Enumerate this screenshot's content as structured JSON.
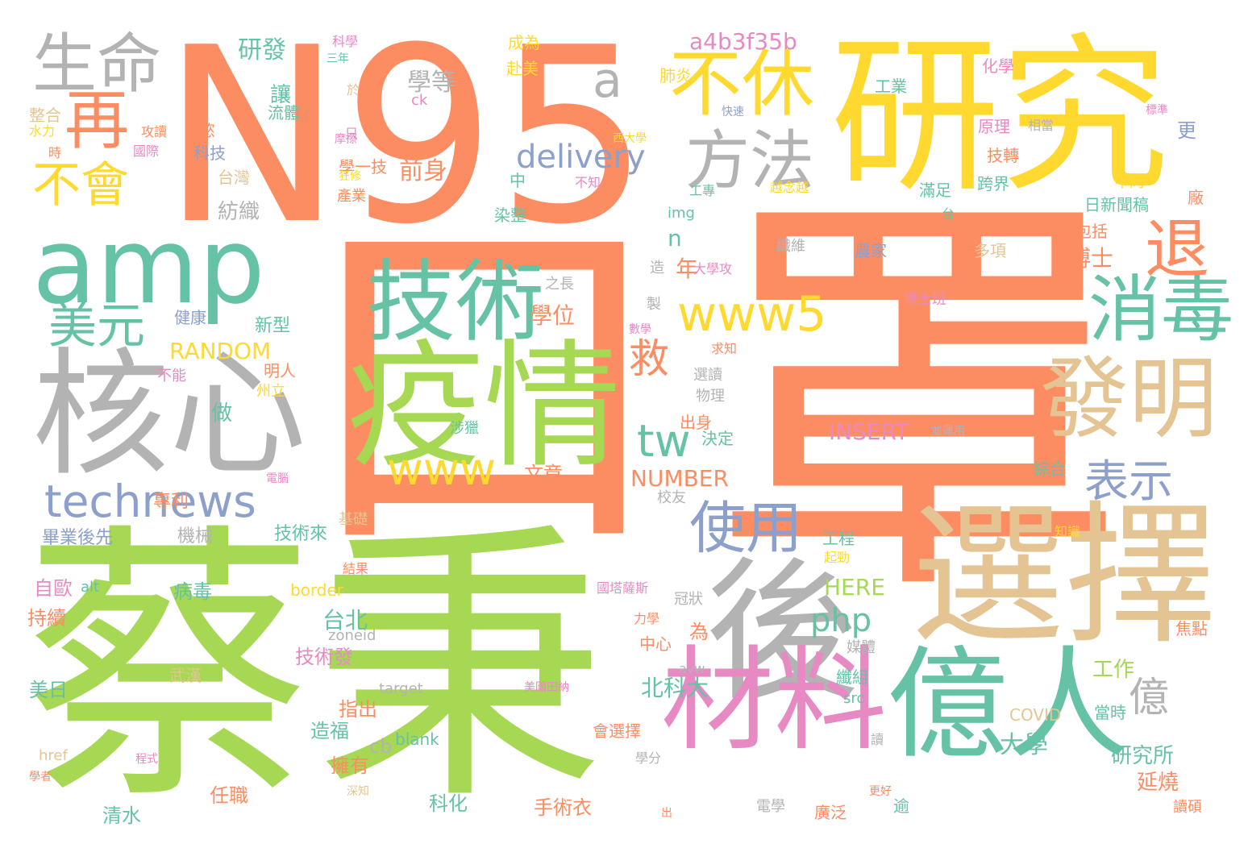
{
  "palette": {
    "orange": "#fc8d62",
    "yellow": "#ffd92f",
    "green": "#a6d854",
    "teal": "#66c2a5",
    "gray": "#b3b3b3",
    "blue": "#8da0cb",
    "pink": "#e78ac3",
    "tan": "#e5c494"
  },
  "words": [
    {
      "text": "罩",
      "color": "orange"
    },
    {
      "text": "N95",
      "color": "orange"
    },
    {
      "text": "口",
      "color": "orange"
    },
    {
      "text": "研究",
      "color": "yellow"
    },
    {
      "text": "蔡秉",
      "color": "green"
    },
    {
      "text": "amp",
      "color": "teal"
    },
    {
      "text": "核心",
      "color": "gray"
    },
    {
      "text": "選擇",
      "color": "tan"
    },
    {
      "text": "疫情",
      "color": "green"
    },
    {
      "text": "技術",
      "color": "teal"
    },
    {
      "text": "後",
      "color": "gray"
    },
    {
      "text": "億人",
      "color": "teal"
    },
    {
      "text": "材料",
      "color": "pink"
    },
    {
      "text": "發明",
      "color": "tan"
    },
    {
      "text": "消毒",
      "color": "teal"
    },
    {
      "text": "退",
      "color": "orange"
    },
    {
      "text": "不休",
      "color": "yellow"
    },
    {
      "text": "方法",
      "color": "gray"
    },
    {
      "text": "生命",
      "color": "gray"
    },
    {
      "text": "再",
      "color": "orange"
    },
    {
      "text": "不會",
      "color": "yellow"
    },
    {
      "text": "美元",
      "color": "teal"
    },
    {
      "text": "technews",
      "color": "blue"
    },
    {
      "text": "使用",
      "color": "blue"
    },
    {
      "text": "表示",
      "color": "blue"
    },
    {
      "text": "www5",
      "color": "yellow"
    },
    {
      "text": "www",
      "color": "yellow"
    },
    {
      "text": "a",
      "color": "gray"
    },
    {
      "text": "tw",
      "color": "teal"
    },
    {
      "text": "救",
      "color": "orange"
    },
    {
      "text": "delivery",
      "color": "blue"
    },
    {
      "text": "億",
      "color": "gray"
    },
    {
      "text": "php",
      "color": "teal"
    },
    {
      "text": "a4b3f35b",
      "color": "pink"
    },
    {
      "text": "研發",
      "color": "teal"
    },
    {
      "text": "學等",
      "color": "gray"
    },
    {
      "text": "前身",
      "color": "orange"
    },
    {
      "text": "學位",
      "color": "orange"
    },
    {
      "text": "年",
      "color": "orange"
    },
    {
      "text": "n",
      "color": "teal"
    },
    {
      "text": "RANDOM",
      "color": "yellow"
    },
    {
      "text": "INSERT",
      "color": "pink"
    },
    {
      "text": "NUMBER",
      "color": "orange"
    },
    {
      "text": "北科大",
      "color": "teal"
    },
    {
      "text": "大學",
      "color": "teal"
    },
    {
      "text": "研究所",
      "color": "teal"
    },
    {
      "text": "延燒",
      "color": "orange"
    },
    {
      "text": "博士",
      "color": "orange"
    },
    {
      "text": "台北",
      "color": "teal"
    },
    {
      "text": "工作",
      "color": "green"
    },
    {
      "text": "HERE",
      "color": "green"
    },
    {
      "text": "紡織",
      "color": "gray"
    },
    {
      "text": "讓",
      "color": "teal"
    },
    {
      "text": "做",
      "color": "teal"
    },
    {
      "text": "文章",
      "color": "orange"
    },
    {
      "text": "為",
      "color": "orange"
    },
    {
      "text": "手術衣",
      "color": "orange"
    },
    {
      "text": "科化",
      "color": "teal"
    },
    {
      "text": "清水",
      "color": "teal"
    },
    {
      "text": "任職",
      "color": "orange"
    },
    {
      "text": "擁有",
      "color": "orange"
    },
    {
      "text": "造福",
      "color": "teal"
    },
    {
      "text": "指出",
      "color": "orange"
    },
    {
      "text": "技術發",
      "color": "pink"
    },
    {
      "text": "病毒",
      "color": "teal"
    },
    {
      "text": "自歐",
      "color": "pink"
    },
    {
      "text": "持續",
      "color": "orange"
    },
    {
      "text": "美日",
      "color": "teal"
    },
    {
      "text": "技術來",
      "color": "teal"
    },
    {
      "text": "畢業後先",
      "color": "blue"
    },
    {
      "text": "機械",
      "color": "gray"
    },
    {
      "text": "專利",
      "color": "orange"
    },
    {
      "text": "健康",
      "color": "blue"
    },
    {
      "text": "新型",
      "color": "teal"
    },
    {
      "text": "科技",
      "color": "blue"
    },
    {
      "text": "台灣",
      "color": "tan"
    },
    {
      "text": "學一技",
      "color": "orange"
    },
    {
      "text": "染整",
      "color": "teal"
    },
    {
      "text": "中",
      "color": "teal"
    },
    {
      "text": "工業",
      "color": "teal"
    },
    {
      "text": "肺炎",
      "color": "yellow"
    },
    {
      "text": "赴美",
      "color": "yellow"
    },
    {
      "text": "成為",
      "color": "yellow"
    },
    {
      "text": "原理",
      "color": "pink"
    },
    {
      "text": "技轉",
      "color": "orange"
    },
    {
      "text": "滿足",
      "color": "teal"
    },
    {
      "text": "跨界",
      "color": "teal"
    },
    {
      "text": "日新聞稿",
      "color": "teal"
    },
    {
      "text": "包括",
      "color": "orange"
    },
    {
      "text": "多項",
      "color": "tan"
    },
    {
      "text": "農家",
      "color": "blue"
    },
    {
      "text": "纖維",
      "color": "gray"
    },
    {
      "text": "更",
      "color": "blue"
    },
    {
      "text": "化學",
      "color": "pink"
    },
    {
      "text": "相當",
      "color": "gray"
    },
    {
      "text": "廠",
      "color": "orange"
    },
    {
      "text": "不同",
      "color": "yellow"
    },
    {
      "text": "綜合",
      "color": "teal"
    },
    {
      "text": "焦點",
      "color": "orange"
    },
    {
      "text": "當時",
      "color": "teal"
    },
    {
      "text": "COVID",
      "color": "tan"
    },
    {
      "text": "讀碩",
      "color": "orange"
    },
    {
      "text": "逾",
      "color": "teal"
    },
    {
      "text": "廣泛",
      "color": "orange"
    },
    {
      "text": "電學",
      "color": "gray"
    },
    {
      "text": "會選擇",
      "color": "orange"
    },
    {
      "text": "blank",
      "color": "teal"
    },
    {
      "text": "cb",
      "color": "gray"
    },
    {
      "text": "target",
      "color": "gray"
    },
    {
      "text": "href",
      "color": "tan"
    },
    {
      "text": "border",
      "color": "yellow"
    },
    {
      "text": "alt",
      "color": "teal"
    },
    {
      "text": "zoneid",
      "color": "gray"
    },
    {
      "text": "src",
      "color": "teal"
    },
    {
      "text": "avw",
      "color": "gray"
    },
    {
      "text": "ck",
      "color": "pink"
    },
    {
      "text": "img",
      "color": "teal"
    },
    {
      "text": "中心",
      "color": "orange"
    },
    {
      "text": "力學",
      "color": "orange"
    },
    {
      "text": "冠狀",
      "color": "gray"
    },
    {
      "text": "媒體",
      "color": "gray"
    },
    {
      "text": "纖組",
      "color": "teal"
    },
    {
      "text": "工程",
      "color": "teal"
    },
    {
      "text": "起勁",
      "color": "yellow"
    },
    {
      "text": "決定",
      "color": "teal"
    },
    {
      "text": "出身",
      "color": "orange"
    },
    {
      "text": "物理",
      "color": "gray"
    },
    {
      "text": "選讀",
      "color": "gray"
    },
    {
      "text": "求知",
      "color": "orange"
    },
    {
      "text": "大學攻",
      "color": "pink"
    },
    {
      "text": "之長",
      "color": "gray"
    },
    {
      "text": "數學",
      "color": "pink"
    },
    {
      "text": "製",
      "color": "gray"
    },
    {
      "text": "造",
      "color": "gray"
    },
    {
      "text": "校友",
      "color": "gray"
    },
    {
      "text": "知識",
      "color": "yellow"
    },
    {
      "text": "博士班",
      "color": "pink"
    },
    {
      "text": "國塔薩斯",
      "color": "pink"
    },
    {
      "text": "美國田納",
      "color": "pink"
    },
    {
      "text": "西大學",
      "color": "yellow"
    },
    {
      "text": "越念越",
      "color": "yellow"
    },
    {
      "text": "快速",
      "color": "blue"
    },
    {
      "text": "工專",
      "color": "teal"
    },
    {
      "text": "產業",
      "color": "orange"
    },
    {
      "text": "狂修",
      "color": "yellow"
    },
    {
      "text": "不知",
      "color": "pink"
    },
    {
      "text": "明人",
      "color": "orange"
    },
    {
      "text": "州立",
      "color": "yellow"
    },
    {
      "text": "不能",
      "color": "pink"
    },
    {
      "text": "涉獵",
      "color": "teal"
    },
    {
      "text": "基礎",
      "color": "tan"
    },
    {
      "text": "結果",
      "color": "orange"
    },
    {
      "text": "電腦",
      "color": "pink"
    },
    {
      "text": "武漢",
      "color": "tan"
    },
    {
      "text": "只",
      "color": "pink"
    },
    {
      "text": "於",
      "color": "tan"
    },
    {
      "text": "摩擦",
      "color": "pink"
    },
    {
      "text": "慾",
      "color": "orange"
    },
    {
      "text": "流體",
      "color": "teal"
    },
    {
      "text": "整合",
      "color": "tan"
    },
    {
      "text": "水力",
      "color": "yellow"
    },
    {
      "text": "時",
      "color": "orange"
    },
    {
      "text": "國際",
      "color": "pink"
    },
    {
      "text": "攻讀",
      "color": "orange"
    },
    {
      "text": "科學",
      "color": "pink"
    },
    {
      "text": "三年",
      "color": "teal"
    },
    {
      "text": "並運用",
      "color": "gray"
    },
    {
      "text": "學分",
      "color": "gray"
    },
    {
      "text": "讀",
      "color": "gray"
    },
    {
      "text": "學者",
      "color": "orange"
    },
    {
      "text": "程式",
      "color": "pink"
    },
    {
      "text": "深知",
      "color": "tan"
    },
    {
      "text": "出",
      "color": "orange"
    },
    {
      "text": "更好",
      "color": "orange"
    },
    {
      "text": "標準",
      "color": "pink"
    },
    {
      "text": "台",
      "color": "teal"
    }
  ]
}
